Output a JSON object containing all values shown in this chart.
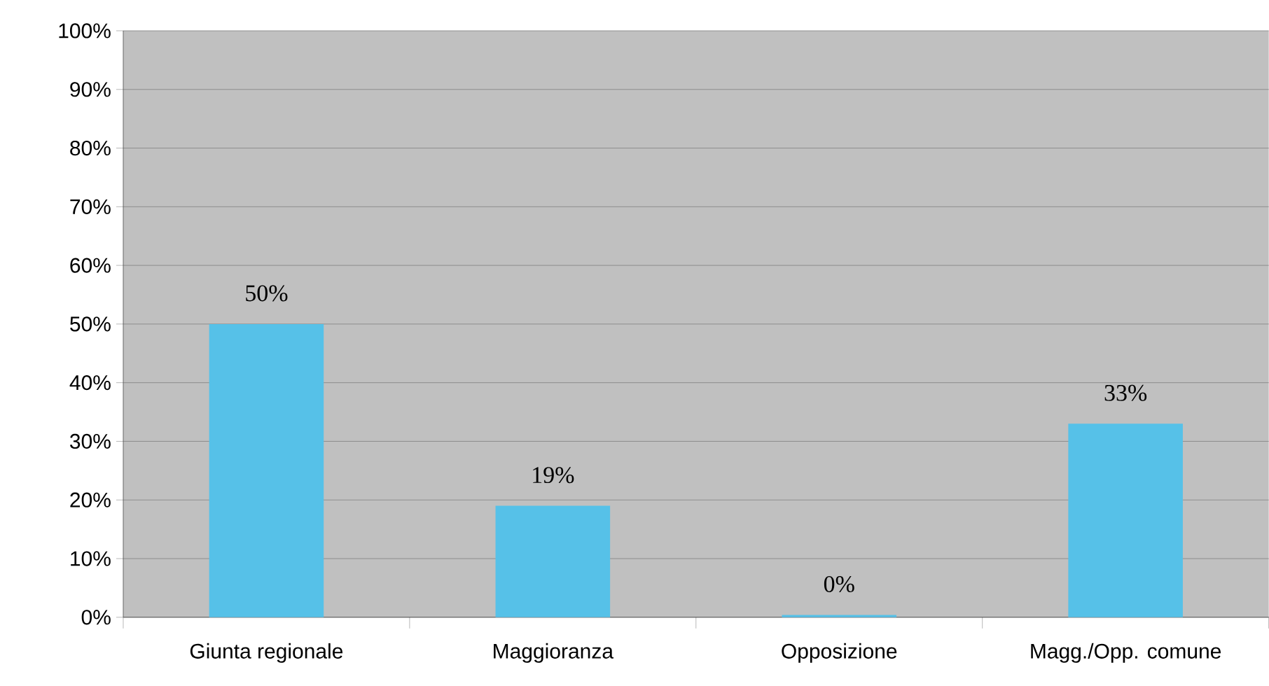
{
  "chart_data": {
    "type": "bar",
    "categories": [
      "Giunta regionale",
      "Maggioranza",
      "Opposizione",
      "Magg./Opp. comune"
    ],
    "values": [
      50,
      19,
      0.4,
      33
    ],
    "value_labels": [
      "50%",
      "19%",
      "0%",
      "33%"
    ],
    "color": "#56c1e8",
    "ylim": [
      0,
      100
    ],
    "yticks": [
      {
        "value": 0,
        "label": "0%"
      },
      {
        "value": 10,
        "label": "10%"
      },
      {
        "value": 20,
        "label": "20%"
      },
      {
        "value": 30,
        "label": "30%"
      },
      {
        "value": 40,
        "label": "40%"
      },
      {
        "value": 50,
        "label": "50%"
      },
      {
        "value": 60,
        "label": "60%"
      },
      {
        "value": 70,
        "label": "70%"
      },
      {
        "value": 80,
        "label": "80%"
      },
      {
        "value": 90,
        "label": "90%"
      },
      {
        "value": 100,
        "label": "100%"
      }
    ],
    "grid": "y"
  }
}
